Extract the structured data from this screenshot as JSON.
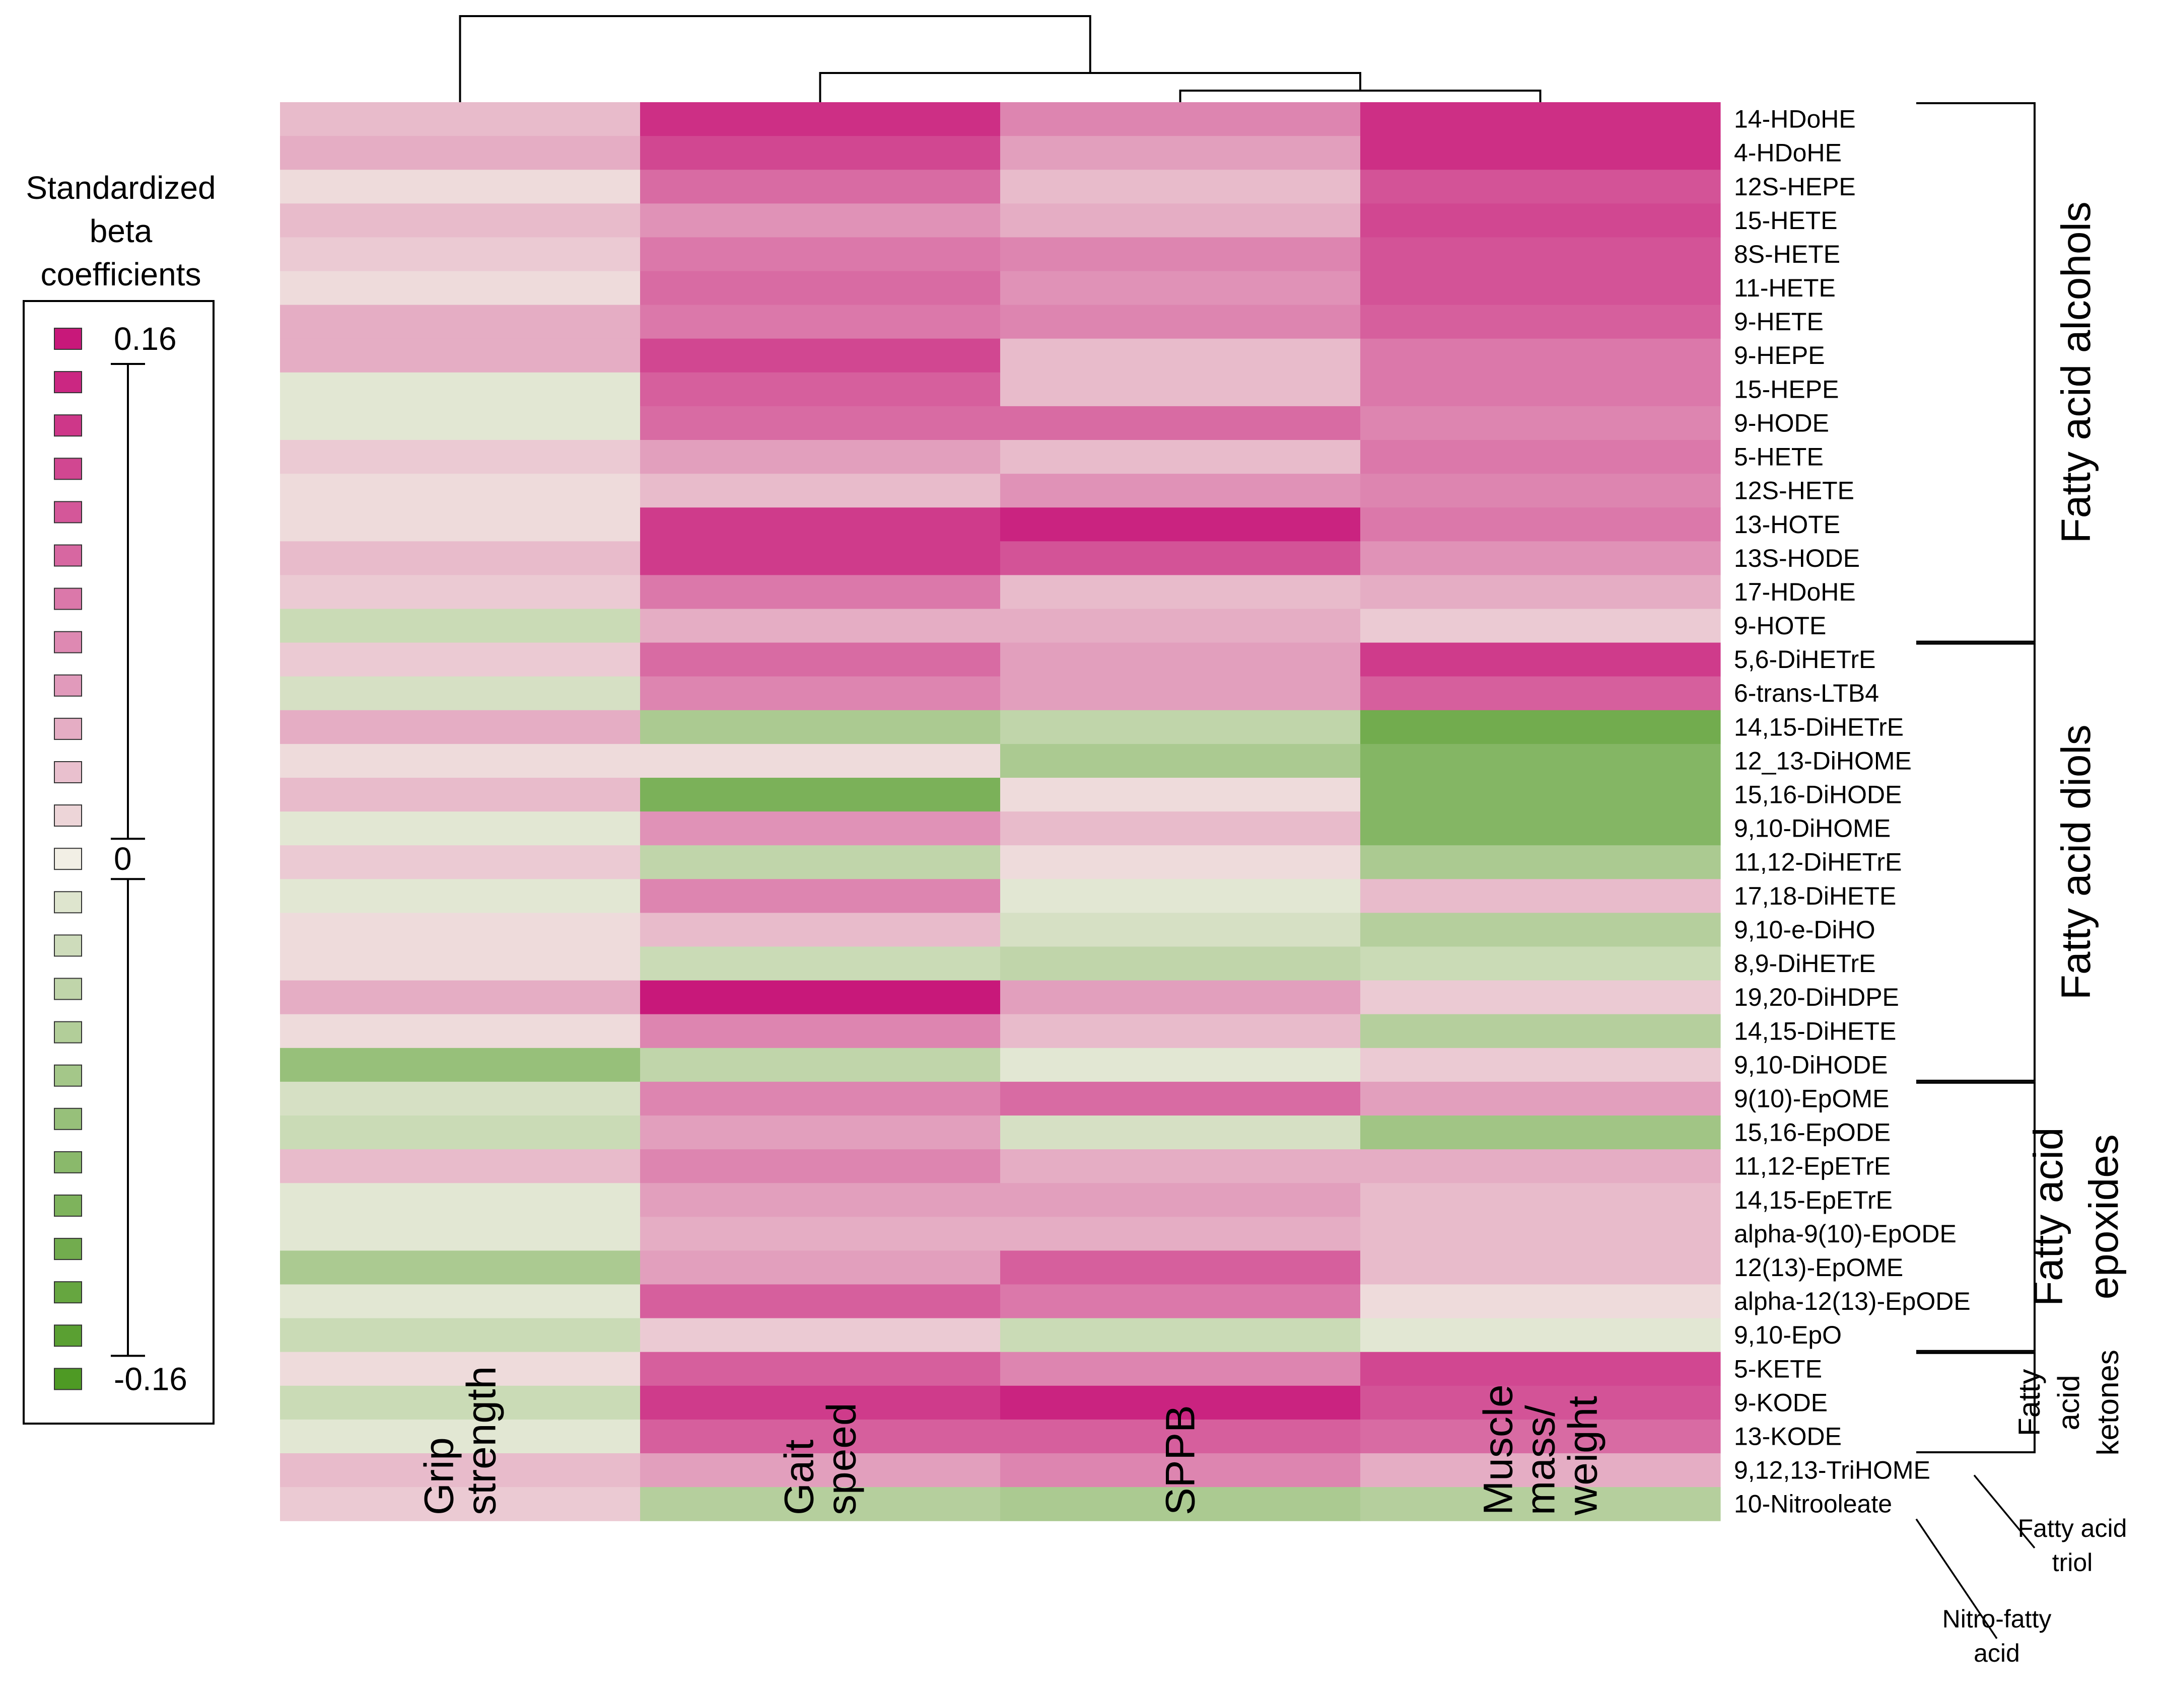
{
  "chart_data": {
    "type": "heatmap",
    "legend": {
      "title": [
        "Standardized",
        "beta",
        "coefficients"
      ],
      "max_label": "0.16",
      "zero_label": "0",
      "min_label": "-0.16",
      "levels": 25
    },
    "colors": {
      "positive": "#c8187a",
      "neutral": "#f2efe5",
      "negative": "#4e9a24"
    },
    "columns": [
      [
        "Grip",
        "strength"
      ],
      [
        "Gait",
        "speed"
      ],
      [
        "SPPB"
      ],
      [
        "Muscle",
        "mass/",
        "weight"
      ]
    ],
    "rows": [
      "14-HDoHE",
      "4-HDoHE",
      "12S-HEPE",
      "15-HETE",
      "8S-HETE",
      "11-HETE",
      "9-HETE",
      "9-HEPE",
      "15-HEPE",
      "9-HODE",
      "5-HETE",
      "12S-HETE",
      "13-HOTE",
      "13S-HODE",
      "17-HDoHE",
      "9-HOTE",
      "5,6-DiHETrE",
      "6-trans-LTB4",
      "14,15-DiHETrE",
      "12_13-DiHOME",
      "15,16-DiHODE",
      "9,10-DiHOME",
      "11,12-DiHETrE",
      "17,18-DiHETE",
      "9,10-e-DiHO",
      "8,9-DiHETrE",
      "19,20-DiHDPE",
      "14,15-DiHETE",
      "9,10-DiHODE",
      "9(10)-EpOME",
      "15,16-EpODE",
      "11,12-EpETrE",
      "14,15-EpETrE",
      "alpha-9(10)-EpODE",
      "12(13)-EpOME",
      "alpha-12(13)-EpODE",
      "9,10-EpO",
      "5-KETE",
      "9-KODE",
      "13-KODE",
      "9,12,13-TriHOME",
      "10-Nitrooleate"
    ],
    "values": [
      [
        0.03,
        0.14,
        0.07,
        0.14
      ],
      [
        0.04,
        0.12,
        0.05,
        0.14
      ],
      [
        0.01,
        0.09,
        0.03,
        0.11
      ],
      [
        0.03,
        0.06,
        0.04,
        0.12
      ],
      [
        0.02,
        0.08,
        0.07,
        0.11
      ],
      [
        0.01,
        0.09,
        0.06,
        0.11
      ],
      [
        0.04,
        0.08,
        0.07,
        0.1
      ],
      [
        0.04,
        0.12,
        0.03,
        0.08
      ],
      [
        -0.01,
        0.1,
        0.03,
        0.08
      ],
      [
        -0.01,
        0.09,
        0.09,
        0.07
      ],
      [
        0.02,
        0.05,
        0.03,
        0.08
      ],
      [
        0.01,
        0.03,
        0.06,
        0.07
      ],
      [
        0.01,
        0.13,
        0.15,
        0.08
      ],
      [
        0.03,
        0.13,
        0.11,
        0.06
      ],
      [
        0.02,
        0.08,
        0.03,
        0.04
      ],
      [
        -0.03,
        0.04,
        0.04,
        0.02
      ],
      [
        0.02,
        0.09,
        0.05,
        0.13
      ],
      [
        -0.02,
        0.07,
        0.05,
        0.1
      ],
      [
        0.04,
        -0.06,
        -0.04,
        -0.12
      ],
      [
        0.01,
        0.01,
        -0.06,
        -0.1
      ],
      [
        0.03,
        -0.11,
        0.01,
        -0.1
      ],
      [
        -0.01,
        0.06,
        0.03,
        -0.1
      ],
      [
        0.02,
        -0.04,
        0.01,
        -0.06
      ],
      [
        -0.01,
        0.07,
        -0.01,
        0.03
      ],
      [
        0.01,
        0.03,
        -0.02,
        -0.05
      ],
      [
        0.01,
        -0.03,
        -0.04,
        -0.03
      ],
      [
        0.04,
        0.16,
        0.05,
        0.02
      ],
      [
        0.01,
        0.07,
        0.03,
        -0.05
      ],
      [
        -0.08,
        -0.04,
        -0.01,
        0.02
      ],
      [
        -0.02,
        0.07,
        0.09,
        0.05
      ],
      [
        -0.03,
        0.05,
        -0.02,
        -0.07
      ],
      [
        0.03,
        0.07,
        0.04,
        0.04
      ],
      [
        -0.01,
        0.05,
        0.05,
        0.03
      ],
      [
        -0.01,
        0.04,
        0.04,
        0.03
      ],
      [
        -0.06,
        0.05,
        0.1,
        0.03
      ],
      [
        -0.01,
        0.1,
        0.08,
        0.01
      ],
      [
        -0.03,
        0.02,
        -0.03,
        -0.01
      ],
      [
        0.01,
        0.1,
        0.07,
        0.12
      ],
      [
        -0.03,
        0.13,
        0.15,
        0.11
      ],
      [
        -0.01,
        0.1,
        0.1,
        0.09
      ],
      [
        0.03,
        0.05,
        0.07,
        0.04
      ],
      [
        0.02,
        -0.05,
        -0.06,
        -0.05
      ]
    ],
    "column_dendrogram": "((Grip strength),(Gait speed,(SPPB, Muscle mass/weight)))",
    "row_groups": [
      {
        "label": [
          "Fatty acid alcohols"
        ],
        "first": 0,
        "last": 15
      },
      {
        "label": [
          "Fatty acid diols"
        ],
        "first": 16,
        "last": 28
      },
      {
        "label": [
          "Fatty acid",
          "epoxides"
        ],
        "first": 29,
        "last": 36
      },
      {
        "label": [
          "Fatty",
          "acid",
          "ketones"
        ],
        "first": 37,
        "last": 39
      }
    ],
    "callouts": [
      {
        "label": [
          "Fatty acid",
          "triol"
        ],
        "row": 40
      },
      {
        "label": [
          "Nitro-fatty",
          "acid"
        ],
        "row": 41
      }
    ]
  }
}
